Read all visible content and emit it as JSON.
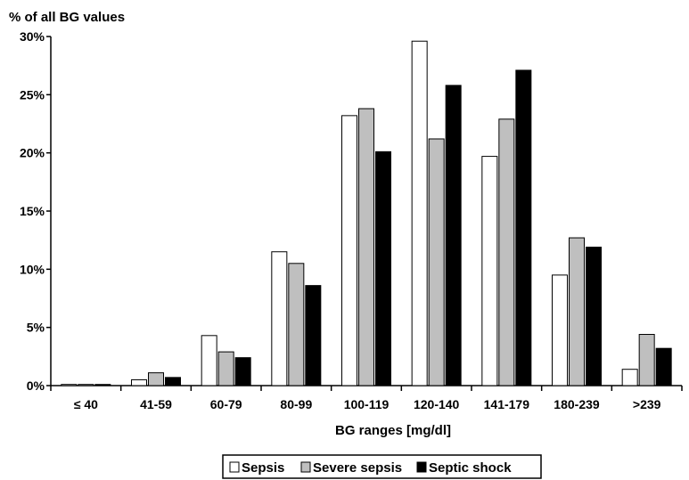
{
  "chart_data": {
    "type": "bar",
    "ylabel": "% of all BG values",
    "xlabel": "BG ranges [mg/dl]",
    "categories": [
      "≤ 40",
      "41-59",
      "60-79",
      "80-99",
      "100-119",
      "120-140",
      "141-179",
      "180-239",
      ">239"
    ],
    "series": [
      {
        "name": "Sepsis",
        "color": "#ffffff",
        "values": [
          0.1,
          0.5,
          4.3,
          11.5,
          23.2,
          29.6,
          19.7,
          9.5,
          1.4
        ]
      },
      {
        "name": "Severe sepsis",
        "color": "#bfbfbf",
        "values": [
          0.1,
          1.1,
          2.9,
          10.5,
          23.8,
          21.2,
          22.9,
          12.7,
          4.4
        ]
      },
      {
        "name": "Septic shock",
        "color": "#000000",
        "values": [
          0.1,
          0.7,
          2.4,
          8.6,
          20.1,
          25.8,
          27.1,
          11.9,
          3.2
        ]
      }
    ],
    "ylim": [
      0,
      30
    ],
    "yticks": [
      "0%",
      "5%",
      "10%",
      "15%",
      "20%",
      "25%",
      "30%"
    ],
    "grid": false,
    "legend_position": "bottom-center"
  }
}
